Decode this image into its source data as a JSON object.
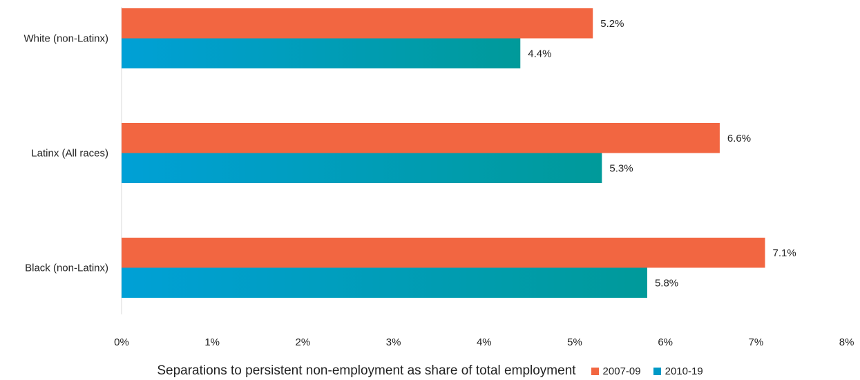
{
  "chart_data": {
    "type": "bar",
    "orientation": "horizontal",
    "categories": [
      "White (non-Latinx)",
      "Latinx (All races)",
      "Black (non-Latinx)"
    ],
    "series": [
      {
        "name": "2007-09",
        "values": [
          5.2,
          6.6,
          7.1
        ],
        "labels": [
          "5.2%",
          "6.6%",
          "7.1%"
        ],
        "color": "#f26641"
      },
      {
        "name": "2010-19",
        "values": [
          4.4,
          5.3,
          5.8
        ],
        "labels": [
          "4.4%",
          "5.3%",
          "5.8%"
        ],
        "color": "#0099c6"
      }
    ],
    "xlim": [
      0,
      8
    ],
    "x_ticks": [
      "0%",
      "1%",
      "2%",
      "3%",
      "4%",
      "5%",
      "6%",
      "7%",
      "8%"
    ],
    "xlabel": "Separations to persistent non-employment as share of total employment",
    "legend_position": "bottom-right",
    "grid": false
  }
}
